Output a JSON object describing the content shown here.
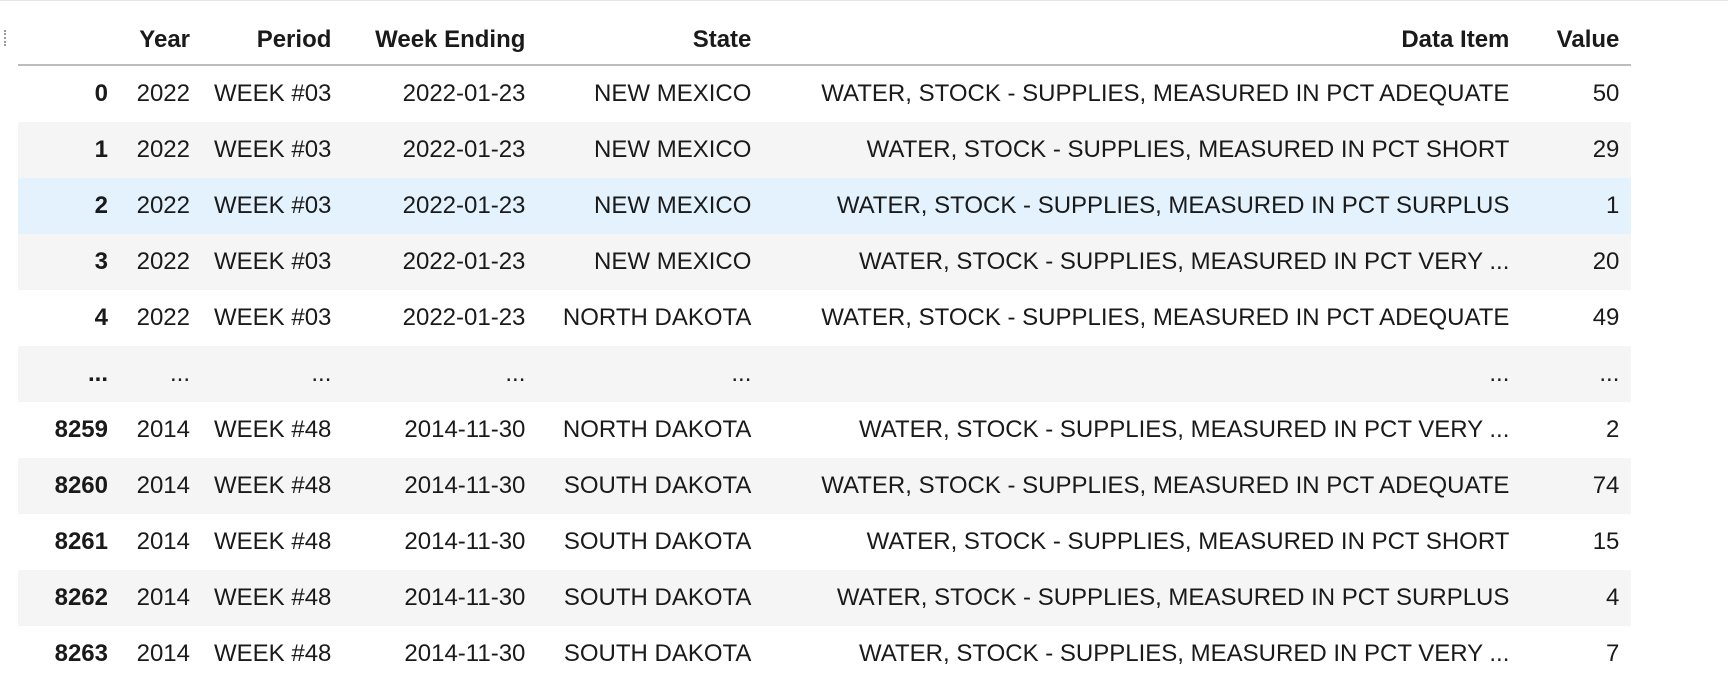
{
  "table": {
    "columns": [
      "",
      "Year",
      "Period",
      "Week Ending",
      "State",
      "Data Item",
      "Value"
    ],
    "rows": [
      {
        "index": "0",
        "year": "2022",
        "period": "WEEK #03",
        "week_ending": "2022-01-23",
        "state": "NEW MEXICO",
        "data_item": "WATER, STOCK - SUPPLIES, MEASURED IN PCT ADEQUATE",
        "value": "50"
      },
      {
        "index": "1",
        "year": "2022",
        "period": "WEEK #03",
        "week_ending": "2022-01-23",
        "state": "NEW MEXICO",
        "data_item": "WATER, STOCK - SUPPLIES, MEASURED IN PCT SHORT",
        "value": "29"
      },
      {
        "index": "2",
        "year": "2022",
        "period": "WEEK #03",
        "week_ending": "2022-01-23",
        "state": "NEW MEXICO",
        "data_item": "WATER, STOCK - SUPPLIES, MEASURED IN PCT SURPLUS",
        "value": "1"
      },
      {
        "index": "3",
        "year": "2022",
        "period": "WEEK #03",
        "week_ending": "2022-01-23",
        "state": "NEW MEXICO",
        "data_item": "WATER, STOCK - SUPPLIES, MEASURED IN PCT VERY ...",
        "value": "20"
      },
      {
        "index": "4",
        "year": "2022",
        "period": "WEEK #03",
        "week_ending": "2022-01-23",
        "state": "NORTH DAKOTA",
        "data_item": "WATER, STOCK - SUPPLIES, MEASURED IN PCT ADEQUATE",
        "value": "49"
      },
      {
        "index": "...",
        "year": "...",
        "period": "...",
        "week_ending": "...",
        "state": "...",
        "data_item": "...",
        "value": "..."
      },
      {
        "index": "8259",
        "year": "2014",
        "period": "WEEK #48",
        "week_ending": "2014-11-30",
        "state": "NORTH DAKOTA",
        "data_item": "WATER, STOCK - SUPPLIES, MEASURED IN PCT VERY ...",
        "value": "2"
      },
      {
        "index": "8260",
        "year": "2014",
        "period": "WEEK #48",
        "week_ending": "2014-11-30",
        "state": "SOUTH DAKOTA",
        "data_item": "WATER, STOCK - SUPPLIES, MEASURED IN PCT ADEQUATE",
        "value": "74"
      },
      {
        "index": "8261",
        "year": "2014",
        "period": "WEEK #48",
        "week_ending": "2014-11-30",
        "state": "SOUTH DAKOTA",
        "data_item": "WATER, STOCK - SUPPLIES, MEASURED IN PCT SHORT",
        "value": "15"
      },
      {
        "index": "8262",
        "year": "2014",
        "period": "WEEK #48",
        "week_ending": "2014-11-30",
        "state": "SOUTH DAKOTA",
        "data_item": "WATER, STOCK - SUPPLIES, MEASURED IN PCT SURPLUS",
        "value": "4"
      },
      {
        "index": "8263",
        "year": "2014",
        "period": "WEEK #48",
        "week_ending": "2014-11-30",
        "state": "SOUTH DAKOTA",
        "data_item": "WATER, STOCK - SUPPLIES, MEASURED IN PCT VERY ...",
        "value": "7"
      }
    ]
  },
  "colors": {
    "stripe": "#f5f5f5",
    "hover_row": "#e3f2fd",
    "header_rule": "#bdbdbd"
  }
}
